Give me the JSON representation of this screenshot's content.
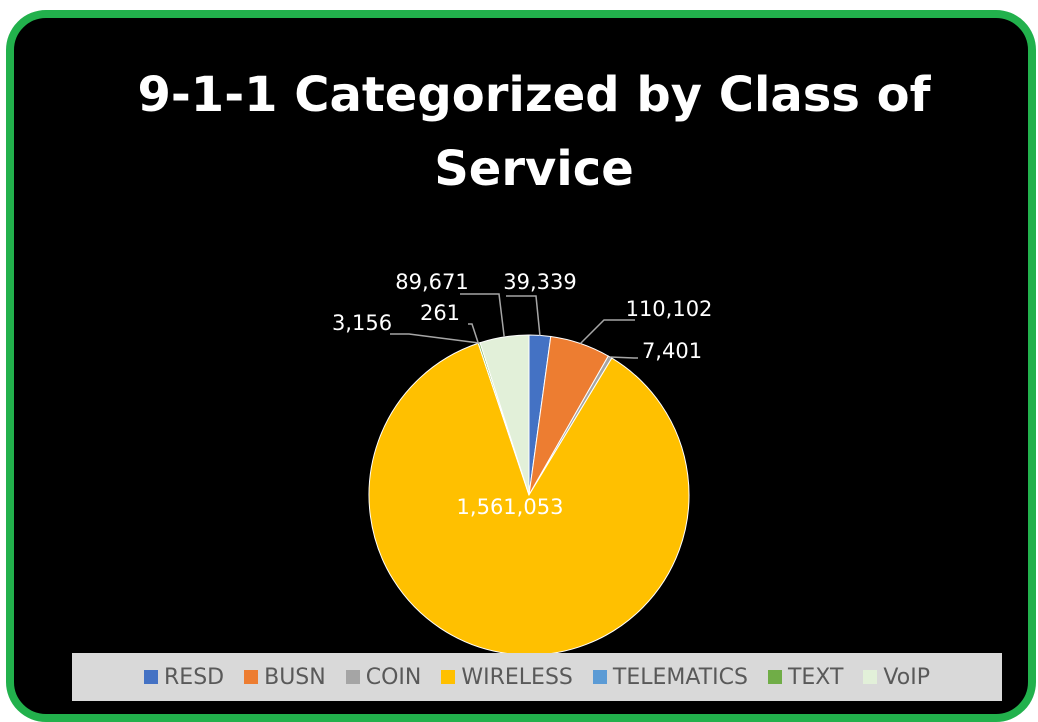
{
  "chart_data": {
    "type": "pie",
    "title": "9-1-1 Categorized by Class of Service",
    "categories": [
      "RESD",
      "BUSN",
      "COIN",
      "WIRELESS",
      "TELEMATICS",
      "TEXT",
      "VoIP"
    ],
    "values": [
      39339,
      110102,
      7401,
      1561053,
      261,
      3156,
      89671
    ],
    "value_labels": [
      "39,339",
      "110,102",
      "7,401",
      "1,561,053",
      "261",
      "3,156",
      "89,671"
    ],
    "colors": [
      "#4472c4",
      "#ed7d31",
      "#a5a5a5",
      "#ffc000",
      "#5b9bd5",
      "#70ad47",
      "#e2f0d9"
    ],
    "legend": "bottom"
  }
}
